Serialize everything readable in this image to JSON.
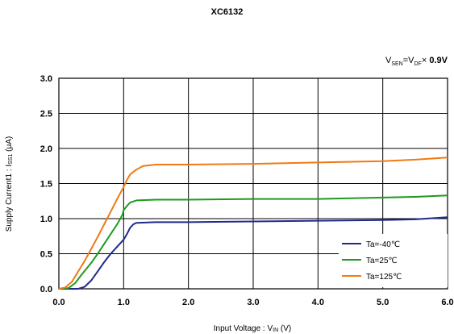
{
  "title": "XC6132",
  "condition": {
    "v_sen": "V",
    "v_sen_sub": "SEN",
    "eq": "=V",
    "v_df_sub": "DF",
    "times": "×",
    "factor": "0.9V"
  },
  "colors": {
    "t_minus40": "#1f2a8c",
    "t_25": "#1e9a1e",
    "t_125": "#f07a14",
    "grid": "#000000"
  },
  "chart_data": {
    "type": "line",
    "title": "XC6132",
    "xlabel": "Input Voltage : VIN (V)",
    "ylabel": "Supply Current1 : ISS1 (μA)",
    "xlim": [
      0,
      6
    ],
    "ylim": [
      0,
      3
    ],
    "x_ticks": [
      "0.0",
      "1.0",
      "2.0",
      "3.0",
      "4.0",
      "5.0",
      "6.0"
    ],
    "y_ticks": [
      "0.0",
      "0.5",
      "1.0",
      "1.5",
      "2.0",
      "2.5",
      "3.0"
    ],
    "grid": true,
    "legend_position": "bottom-right",
    "series": [
      {
        "name": "Ta=-40℃",
        "color_key": "t_minus40",
        "points": [
          [
            0,
            0
          ],
          [
            0.3,
            0
          ],
          [
            0.4,
            0.03
          ],
          [
            0.5,
            0.12
          ],
          [
            0.6,
            0.25
          ],
          [
            0.7,
            0.38
          ],
          [
            0.8,
            0.5
          ],
          [
            0.9,
            0.6
          ],
          [
            1.0,
            0.7
          ],
          [
            1.05,
            0.78
          ],
          [
            1.1,
            0.87
          ],
          [
            1.15,
            0.92
          ],
          [
            1.2,
            0.94
          ],
          [
            1.5,
            0.95
          ],
          [
            2,
            0.95
          ],
          [
            3,
            0.96
          ],
          [
            4,
            0.97
          ],
          [
            5,
            0.98
          ],
          [
            5.5,
            0.99
          ],
          [
            6,
            1.02
          ]
        ]
      },
      {
        "name": "Ta=25℃",
        "color_key": "t_25",
        "points": [
          [
            0,
            0
          ],
          [
            0.15,
            0.01
          ],
          [
            0.25,
            0.08
          ],
          [
            0.35,
            0.2
          ],
          [
            0.5,
            0.37
          ],
          [
            0.6,
            0.5
          ],
          [
            0.7,
            0.64
          ],
          [
            0.8,
            0.78
          ],
          [
            0.9,
            0.92
          ],
          [
            0.98,
            1.05
          ],
          [
            1.0,
            1.12
          ],
          [
            1.05,
            1.18
          ],
          [
            1.1,
            1.23
          ],
          [
            1.2,
            1.26
          ],
          [
            1.5,
            1.27
          ],
          [
            2,
            1.27
          ],
          [
            3,
            1.28
          ],
          [
            4,
            1.28
          ],
          [
            5,
            1.3
          ],
          [
            5.5,
            1.31
          ],
          [
            6,
            1.33
          ]
        ]
      },
      {
        "name": "Ta=125℃",
        "color_key": "t_125",
        "points": [
          [
            0,
            0
          ],
          [
            0.1,
            0.02
          ],
          [
            0.2,
            0.1
          ],
          [
            0.3,
            0.25
          ],
          [
            0.4,
            0.4
          ],
          [
            0.5,
            0.57
          ],
          [
            0.6,
            0.74
          ],
          [
            0.7,
            0.92
          ],
          [
            0.8,
            1.1
          ],
          [
            0.9,
            1.28
          ],
          [
            1.0,
            1.45
          ],
          [
            1.05,
            1.55
          ],
          [
            1.1,
            1.63
          ],
          [
            1.2,
            1.7
          ],
          [
            1.3,
            1.75
          ],
          [
            1.5,
            1.77
          ],
          [
            2,
            1.77
          ],
          [
            3,
            1.78
          ],
          [
            4,
            1.8
          ],
          [
            5,
            1.82
          ],
          [
            5.5,
            1.84
          ],
          [
            6,
            1.87
          ]
        ]
      }
    ]
  }
}
